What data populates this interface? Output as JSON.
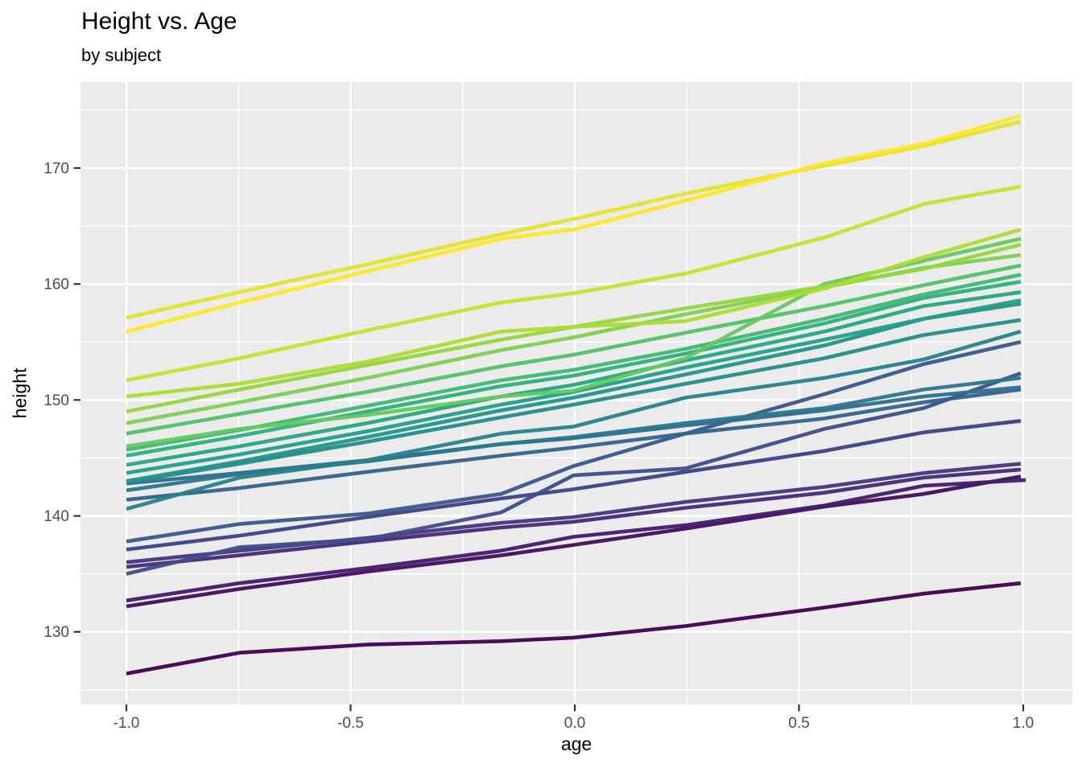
{
  "chart_data": {
    "type": "line",
    "title": "Height vs. Age",
    "subtitle": "by subject",
    "xlabel": "age",
    "ylabel": "height",
    "x": [
      -1.0,
      -0.7479,
      -0.463,
      -0.1643,
      -0.0027,
      0.2466,
      0.5562,
      0.7781,
      0.9945
    ],
    "xlim": [
      -1.1023,
      1.1095
    ],
    "ylim": [
      123.74,
      177.42
    ],
    "x_ticks": {
      "values": [
        -1.0,
        -0.5,
        0.0,
        0.5,
        1.0
      ],
      "labels": [
        "-1.0",
        "-0.5",
        "0.0",
        "0.5",
        "1.0"
      ]
    },
    "y_ticks": {
      "values": [
        130,
        140,
        150,
        160,
        170
      ],
      "labels": [
        "130",
        "140",
        "150",
        "160",
        "170"
      ]
    },
    "x_minor": [
      -0.75,
      -0.25,
      0.25,
      0.75
    ],
    "y_minor": [
      125,
      135,
      145,
      155,
      165,
      175
    ],
    "grid": true,
    "legend": "none",
    "panel_bg": "#EBEBEB",
    "grid_color": "#FFFFFF",
    "tick_color": "#333333",
    "tick_label_color": "#4D4D4D",
    "line_width": 4.6,
    "series": [
      {
        "name": "line-01",
        "color": "#440154",
        "values": [
          126.4,
          128.2,
          128.9,
          129.2,
          129.5,
          130.5,
          132.1,
          133.3,
          134.2
        ]
      },
      {
        "name": "line-02",
        "color": "#450F60",
        "values": [
          132.2,
          133.7,
          135.2,
          136.6,
          137.5,
          138.9,
          140.8,
          141.9,
          143.4
        ]
      },
      {
        "name": "line-03",
        "color": "#461D6D",
        "x": [
          -1.0,
          -0.7479,
          -0.463,
          -0.1643,
          -0.0027,
          0.2466,
          0.5562,
          0.7781,
          1.0055
        ],
        "values": [
          132.7,
          134.2,
          135.5,
          137.0,
          138.2,
          139.2,
          140.9,
          142.6,
          143.1
        ]
      },
      {
        "name": "line-04",
        "color": "#472B79",
        "values": [
          135.6,
          136.6,
          137.8,
          139.0,
          139.5,
          140.7,
          142.0,
          143.3,
          144.0
        ]
      },
      {
        "name": "line-05",
        "color": "#443780",
        "values": [
          136.0,
          137.0,
          138.1,
          139.4,
          139.9,
          141.2,
          142.5,
          143.7,
          144.5
        ]
      },
      {
        "name": "line-06",
        "color": "#404385",
        "values": [
          137.1,
          138.3,
          139.9,
          141.5,
          142.3,
          143.8,
          145.6,
          147.2,
          148.2
        ]
      },
      {
        "name": "line-07",
        "color": "#3C4F8A",
        "values": [
          135.0,
          137.3,
          138.0,
          140.3,
          143.5,
          144.1,
          147.5,
          149.3,
          152.3
        ]
      },
      {
        "name": "line-08",
        "color": "#375A8C",
        "values": [
          137.8,
          139.3,
          140.2,
          141.9,
          144.3,
          147.1,
          150.5,
          153.1,
          155.0
        ]
      },
      {
        "name": "line-09",
        "color": "#33648D",
        "values": [
          141.4,
          142.4,
          143.8,
          145.2,
          145.9,
          147.1,
          148.4,
          149.8,
          150.9
        ]
      },
      {
        "name": "line-10",
        "color": "#2E6E8E",
        "values": [
          142.8,
          143.7,
          144.8,
          146.2,
          146.7,
          147.8,
          149.1,
          150.3,
          151.1
        ]
      },
      {
        "name": "line-11",
        "color": "#2A788E",
        "values": [
          142.2,
          143.6,
          144.7,
          146.2,
          146.8,
          148.0,
          149.3,
          150.9,
          151.9
        ]
      },
      {
        "name": "line-12",
        "color": "#26828D",
        "values": [
          140.6,
          143.3,
          144.8,
          147.1,
          147.7,
          150.2,
          151.9,
          153.5,
          155.9
        ]
      },
      {
        "name": "line-13",
        "color": "#238C8C",
        "values": [
          142.9,
          144.5,
          146.4,
          148.5,
          149.6,
          151.4,
          153.6,
          155.6,
          156.9
        ]
      },
      {
        "name": "line-14",
        "color": "#22958A",
        "values": [
          143.0,
          144.7,
          146.8,
          149.1,
          150.2,
          152.2,
          154.7,
          157.0,
          158.3
        ]
      },
      {
        "name": "line-15",
        "color": "#249E87",
        "values": [
          143.7,
          145.3,
          147.3,
          149.6,
          150.7,
          152.8,
          155.2,
          157.0,
          158.6
        ]
      },
      {
        "name": "line-16",
        "color": "#26A783",
        "values": [
          144.4,
          146.0,
          148.0,
          150.3,
          151.3,
          153.4,
          155.9,
          158.1,
          159.3
        ]
      },
      {
        "name": "line-17",
        "color": "#2EB07D",
        "values": [
          145.2,
          146.9,
          149.0,
          151.2,
          152.1,
          154.0,
          156.6,
          158.8,
          160.2
        ]
      },
      {
        "name": "line-18",
        "color": "#3FB974",
        "values": [
          145.7,
          147.4,
          149.5,
          151.7,
          152.6,
          154.4,
          157.0,
          159.1,
          160.8
        ]
      },
      {
        "name": "line-19",
        "color": "#50C26A",
        "values": [
          147.1,
          148.8,
          150.7,
          152.9,
          153.9,
          155.8,
          158.1,
          159.9,
          161.6
        ]
      },
      {
        "name": "line-20",
        "color": "#63CA5F",
        "values": [
          146.0,
          147.5,
          148.7,
          150.3,
          150.8,
          153.6,
          160.0,
          162.0,
          163.9
        ]
      },
      {
        "name": "line-21",
        "color": "#7CD04F",
        "values": [
          148.0,
          149.8,
          151.9,
          154.3,
          155.4,
          157.4,
          159.7,
          161.4,
          162.5
        ]
      },
      {
        "name": "line-22",
        "color": "#94D640",
        "values": [
          149.0,
          150.9,
          153.0,
          155.2,
          156.3,
          157.9,
          159.8,
          161.3,
          163.4
        ]
      },
      {
        "name": "line-23",
        "color": "#ADDC32",
        "values": [
          150.3,
          151.4,
          153.3,
          155.9,
          156.3,
          156.8,
          159.6,
          162.3,
          164.7
        ]
      },
      {
        "name": "line-24",
        "color": "#C8E02D",
        "values": [
          151.7,
          153.6,
          156.0,
          158.4,
          159.2,
          160.9,
          164.0,
          166.9,
          168.4
        ]
      },
      {
        "name": "line-25",
        "color": "#E2E429",
        "values": [
          157.1,
          159.3,
          161.7,
          164.3,
          165.6,
          167.8,
          170.2,
          171.9,
          174.0
        ]
      },
      {
        "name": "line-26",
        "color": "#FDE725",
        "values": [
          155.9,
          158.4,
          161.1,
          163.9,
          164.7,
          167.2,
          170.4,
          172.1,
          174.5
        ]
      }
    ]
  }
}
